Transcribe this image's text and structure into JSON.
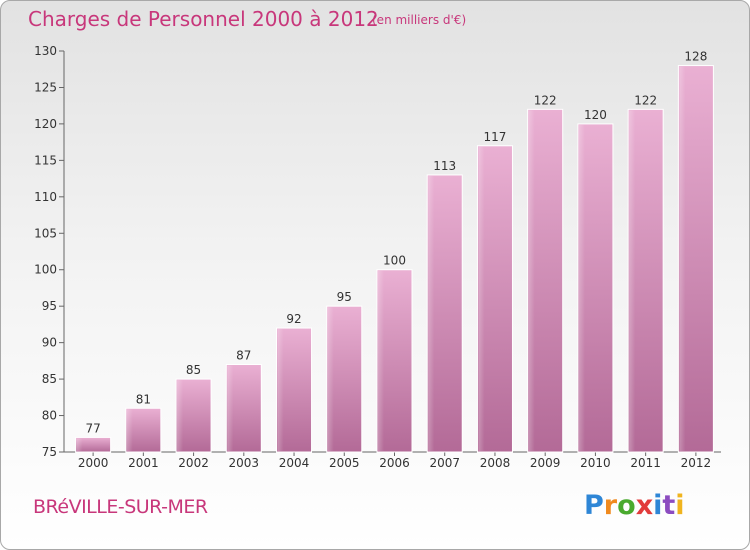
{
  "chart_title": "Charges de Personnel 2000 à 2012",
  "chart_unit": "(en milliers d'€)",
  "commune": "BRéVILLE-SUR-MER",
  "logo": {
    "letters": [
      "P",
      "r",
      "o",
      "x",
      "i",
      "t",
      "i"
    ],
    "colors": [
      "#2e86d6",
      "#f08a1e",
      "#4aaa2e",
      "#e23b3b",
      "#2e86d6",
      "#8c4cc0",
      "#f0b41e"
    ]
  },
  "colors": {
    "bar_top": "#eab0d3",
    "bar_bottom": "#b36a97",
    "title": "#c8377b"
  },
  "chart_data": {
    "type": "bar",
    "categories": [
      "2000",
      "2001",
      "2002",
      "2003",
      "2004",
      "2005",
      "2006",
      "2007",
      "2008",
      "2009",
      "2010",
      "2011",
      "2012"
    ],
    "values": [
      77,
      81,
      85,
      87,
      92,
      95,
      100,
      113,
      117,
      122,
      120,
      122,
      128
    ],
    "title": "Charges de Personnel 2000 à 2012",
    "xlabel": "",
    "ylabel": "",
    "ylim": [
      75,
      130
    ],
    "yticks": [
      75,
      80,
      85,
      90,
      95,
      100,
      105,
      110,
      115,
      120,
      125,
      130
    ],
    "data_labels": true,
    "grid": false,
    "legend": "none"
  }
}
